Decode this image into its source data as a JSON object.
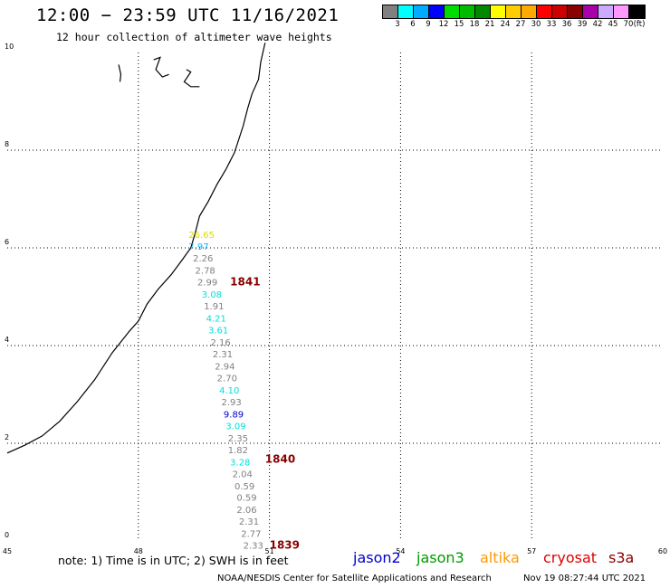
{
  "header": {
    "title": "12:00 − 23:59 UTC 11/16/2021",
    "subtitle": "12 hour collection of altimeter wave heights"
  },
  "legend": {
    "unit": "(ft)",
    "labels": [
      "3",
      "6",
      "9",
      "12",
      "15",
      "18",
      "21",
      "24",
      "27",
      "30",
      "33",
      "36",
      "39",
      "42",
      "45",
      "70"
    ],
    "colors": [
      "#808080",
      "#00ffff",
      "#00aaff",
      "#0000ff",
      "#00dd00",
      "#00bb00",
      "#008800",
      "#ffff00",
      "#ffcc00",
      "#ffaa00",
      "#ff0000",
      "#cc0000",
      "#880000",
      "#aa00aa",
      "#ccaaff",
      "#ff99ff",
      "#000000"
    ]
  },
  "axes": {
    "x_ticks": [
      45,
      48,
      51,
      54,
      57,
      60
    ],
    "y_ticks": [
      0,
      2,
      4,
      6,
      8,
      10
    ],
    "x_range": [
      45,
      60
    ],
    "y_range": [
      0,
      10
    ]
  },
  "measurements": [
    {
      "x": 49.15,
      "y": 6.2,
      "label": "26.65",
      "color": "#dddd00"
    },
    {
      "x": 49.15,
      "y": 5.96,
      "label": "7.97",
      "color": "#00bbff"
    },
    {
      "x": 49.25,
      "y": 5.72,
      "label": "2.26",
      "color": "#808080"
    },
    {
      "x": 49.3,
      "y": 5.47,
      "label": "2.78",
      "color": "#808080"
    },
    {
      "x": 49.35,
      "y": 5.23,
      "label": "2.99",
      "color": "#808080"
    },
    {
      "x": 49.45,
      "y": 4.98,
      "label": "3.08",
      "color": "#00e0e0"
    },
    {
      "x": 49.5,
      "y": 4.74,
      "label": "1.91",
      "color": "#808080"
    },
    {
      "x": 49.55,
      "y": 4.49,
      "label": "4.21",
      "color": "#00e0e0"
    },
    {
      "x": 49.6,
      "y": 4.25,
      "label": "3.61",
      "color": "#00e0e0"
    },
    {
      "x": 49.65,
      "y": 4.0,
      "label": "2.16",
      "color": "#808080"
    },
    {
      "x": 49.7,
      "y": 3.76,
      "label": "2.31",
      "color": "#808080"
    },
    {
      "x": 49.75,
      "y": 3.51,
      "label": "2.94",
      "color": "#808080"
    },
    {
      "x": 49.8,
      "y": 3.27,
      "label": "2.70",
      "color": "#808080"
    },
    {
      "x": 49.85,
      "y": 3.02,
      "label": "4.10",
      "color": "#00e0e0"
    },
    {
      "x": 49.9,
      "y": 2.78,
      "label": "2.93",
      "color": "#808080"
    },
    {
      "x": 49.95,
      "y": 2.53,
      "label": "9.89",
      "color": "#0000cc"
    },
    {
      "x": 50.0,
      "y": 2.29,
      "label": "3.09",
      "color": "#00e0e0"
    },
    {
      "x": 50.05,
      "y": 2.04,
      "label": "2.35",
      "color": "#808080"
    },
    {
      "x": 50.05,
      "y": 1.8,
      "label": "1.82",
      "color": "#808080"
    },
    {
      "x": 50.1,
      "y": 1.55,
      "label": "3.28",
      "color": "#00e0e0"
    },
    {
      "x": 50.15,
      "y": 1.31,
      "label": "2.04",
      "color": "#808080"
    },
    {
      "x": 50.2,
      "y": 1.06,
      "label": "0.59",
      "color": "#808080"
    },
    {
      "x": 50.25,
      "y": 0.82,
      "label": "0.59",
      "color": "#808080"
    },
    {
      "x": 50.25,
      "y": 0.57,
      "label": "2.06",
      "color": "#808080"
    },
    {
      "x": 50.3,
      "y": 0.33,
      "label": "2.31",
      "color": "#808080"
    },
    {
      "x": 50.35,
      "y": 0.08,
      "label": "2.77",
      "color": "#808080"
    },
    {
      "x": 50.4,
      "y": -0.16,
      "label": "2.33",
      "color": "#808080"
    }
  ],
  "time_labels": [
    {
      "x": 50.1,
      "y": 5.23,
      "label": "1841",
      "color": "#880000"
    },
    {
      "x": 50.9,
      "y": 1.6,
      "label": "1840",
      "color": "#880000"
    },
    {
      "x": 51.0,
      "y": -0.16,
      "label": "1839",
      "color": "#880000"
    }
  ],
  "coastline": [
    [
      45.0,
      1.8
    ],
    [
      45.4,
      1.96
    ],
    [
      45.8,
      2.15
    ],
    [
      46.2,
      2.45
    ],
    [
      46.6,
      2.85
    ],
    [
      47.0,
      3.3
    ],
    [
      47.4,
      3.85
    ],
    [
      47.8,
      4.3
    ],
    [
      48.0,
      4.5
    ],
    [
      48.2,
      4.85
    ],
    [
      48.45,
      5.15
    ],
    [
      48.75,
      5.45
    ],
    [
      49.0,
      5.75
    ],
    [
      49.2,
      6.0
    ],
    [
      49.3,
      6.3
    ],
    [
      49.4,
      6.65
    ],
    [
      49.6,
      6.95
    ],
    [
      49.8,
      7.3
    ],
    [
      50.0,
      7.6
    ],
    [
      50.2,
      7.95
    ],
    [
      50.4,
      8.5
    ],
    [
      50.5,
      8.85
    ],
    [
      50.6,
      9.15
    ],
    [
      50.75,
      9.45
    ],
    [
      50.8,
      9.8
    ],
    [
      50.9,
      10.2
    ]
  ],
  "islands": [
    [
      [
        47.55,
        9.75
      ],
      [
        47.6,
        9.55
      ],
      [
        47.58,
        9.4
      ]
    ],
    [
      [
        48.35,
        9.85
      ],
      [
        48.5,
        9.9
      ],
      [
        48.4,
        9.65
      ],
      [
        48.55,
        9.5
      ],
      [
        48.7,
        9.55
      ]
    ],
    [
      [
        49.1,
        9.65
      ],
      [
        49.2,
        9.6
      ],
      [
        49.05,
        9.4
      ],
      [
        49.2,
        9.3
      ],
      [
        49.4,
        9.3
      ]
    ]
  ],
  "notes": {
    "text": "note:  1) Time is in UTC;  2) SWH is in feet"
  },
  "satellites": [
    {
      "name": "jason2",
      "color": "#0000cc"
    },
    {
      "name": "jason3",
      "color": "#009900"
    },
    {
      "name": "altika",
      "color": "#ff9900"
    },
    {
      "name": "cryosat",
      "color": "#dd0000"
    },
    {
      "name": "s3a",
      "color": "#880000"
    }
  ],
  "footer": {
    "credit": "NOAA/NESDIS Center for Satellite Applications and Research",
    "timestamp": "Nov 19 08:27:44 UTC 2021"
  }
}
